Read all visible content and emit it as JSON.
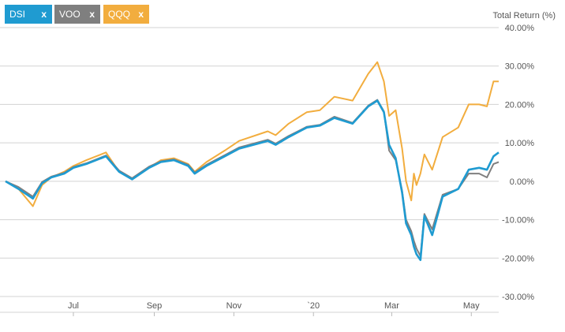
{
  "legend": [
    {
      "label": "DSI",
      "remove": "x",
      "color": "#1f9bd1"
    },
    {
      "label": "VOO",
      "remove": "x",
      "color": "#7f7f7f"
    },
    {
      "label": "QQQ",
      "remove": "x",
      "color": "#f2ad3e"
    }
  ],
  "chart_data": {
    "type": "line",
    "ylabel": "Total Return (%)",
    "ylim": [
      -30,
      40
    ],
    "y_ticks": [
      40,
      30,
      20,
      10,
      0,
      -10,
      -20,
      -30
    ],
    "y_tick_labels": [
      "40.00%",
      "30.00%",
      "20.00%",
      "10.00%",
      "0.00%",
      "-10.00%",
      "-20.00%",
      "-30.00%"
    ],
    "x_tick_labels": [
      "Jul",
      "Sep",
      "Nov",
      "`20",
      "Mar",
      "May"
    ],
    "x_ticks": [
      "2019-07-01",
      "2019-09-01",
      "2019-11-01",
      "2020-01-01",
      "2020-03-01",
      "2020-05-01"
    ],
    "x_range": [
      "2019-05-10",
      "2020-05-22"
    ],
    "grid": true,
    "series": [
      {
        "name": "DSI",
        "color": "#1f9bd1",
        "points": [
          [
            "2019-05-10",
            0
          ],
          [
            "2019-05-20",
            -2
          ],
          [
            "2019-05-31",
            -4.5
          ],
          [
            "2019-06-07",
            -0.5
          ],
          [
            "2019-06-14",
            1
          ],
          [
            "2019-06-24",
            2
          ],
          [
            "2019-07-01",
            3.5
          ],
          [
            "2019-07-11",
            4.5
          ],
          [
            "2019-07-26",
            6.5
          ],
          [
            "2019-08-05",
            2.5
          ],
          [
            "2019-08-15",
            0.5
          ],
          [
            "2019-08-28",
            3.5
          ],
          [
            "2019-09-06",
            5
          ],
          [
            "2019-09-16",
            5.5
          ],
          [
            "2019-09-27",
            4
          ],
          [
            "2019-10-02",
            2
          ],
          [
            "2019-10-11",
            4
          ],
          [
            "2019-10-25",
            6.5
          ],
          [
            "2019-11-05",
            8.5
          ],
          [
            "2019-11-27",
            10.5
          ],
          [
            "2019-12-03",
            9.5
          ],
          [
            "2019-12-13",
            11.5
          ],
          [
            "2019-12-27",
            14
          ],
          [
            "2020-01-06",
            14.5
          ],
          [
            "2020-01-17",
            16.5
          ],
          [
            "2020-01-31",
            15
          ],
          [
            "2020-02-12",
            19.5
          ],
          [
            "2020-02-19",
            21
          ],
          [
            "2020-02-24",
            18
          ],
          [
            "2020-02-28",
            9.5
          ],
          [
            "2020-03-04",
            6
          ],
          [
            "2020-03-09",
            -3
          ],
          [
            "2020-03-12",
            -11
          ],
          [
            "2020-03-16",
            -14
          ],
          [
            "2020-03-18",
            -17
          ],
          [
            "2020-03-20",
            -19
          ],
          [
            "2020-03-23",
            -20.5
          ],
          [
            "2020-03-26",
            -9
          ],
          [
            "2020-04-01",
            -14
          ],
          [
            "2020-04-09",
            -4
          ],
          [
            "2020-04-21",
            -2
          ],
          [
            "2020-04-29",
            3
          ],
          [
            "2020-05-07",
            3.5
          ],
          [
            "2020-05-13",
            3
          ],
          [
            "2020-05-18",
            6.5
          ],
          [
            "2020-05-22",
            7.5
          ]
        ]
      },
      {
        "name": "VOO",
        "color": "#7f7f7f",
        "points": [
          [
            "2019-05-10",
            0
          ],
          [
            "2019-05-20",
            -1.5
          ],
          [
            "2019-05-31",
            -4
          ],
          [
            "2019-06-07",
            -0.2
          ],
          [
            "2019-06-14",
            1.2
          ],
          [
            "2019-06-24",
            2.2
          ],
          [
            "2019-07-01",
            3.7
          ],
          [
            "2019-07-11",
            4.7
          ],
          [
            "2019-07-26",
            6.7
          ],
          [
            "2019-08-05",
            2.8
          ],
          [
            "2019-08-15",
            0.8
          ],
          [
            "2019-08-28",
            3.8
          ],
          [
            "2019-09-06",
            5.2
          ],
          [
            "2019-09-16",
            5.7
          ],
          [
            "2019-09-27",
            4.3
          ],
          [
            "2019-10-02",
            2.3
          ],
          [
            "2019-10-11",
            4.3
          ],
          [
            "2019-10-25",
            6.8
          ],
          [
            "2019-11-05",
            8.8
          ],
          [
            "2019-11-27",
            10.8
          ],
          [
            "2019-12-03",
            9.8
          ],
          [
            "2019-12-13",
            11.8
          ],
          [
            "2019-12-27",
            14.2
          ],
          [
            "2020-01-06",
            14.7
          ],
          [
            "2020-01-17",
            16.8
          ],
          [
            "2020-01-31",
            15.2
          ],
          [
            "2020-02-12",
            19.7
          ],
          [
            "2020-02-19",
            21.2
          ],
          [
            "2020-02-24",
            18.2
          ],
          [
            "2020-02-28",
            8
          ],
          [
            "2020-03-04",
            5.5
          ],
          [
            "2020-03-09",
            -2.5
          ],
          [
            "2020-03-12",
            -10
          ],
          [
            "2020-03-16",
            -13
          ],
          [
            "2020-03-18",
            -15.5
          ],
          [
            "2020-03-20",
            -17.5
          ],
          [
            "2020-03-23",
            -19.5
          ],
          [
            "2020-03-26",
            -8.5
          ],
          [
            "2020-04-01",
            -12.5
          ],
          [
            "2020-04-09",
            -3.5
          ],
          [
            "2020-04-21",
            -2
          ],
          [
            "2020-04-29",
            2
          ],
          [
            "2020-05-07",
            2
          ],
          [
            "2020-05-13",
            1
          ],
          [
            "2020-05-18",
            4.5
          ],
          [
            "2020-05-22",
            5
          ]
        ]
      },
      {
        "name": "QQQ",
        "color": "#f2ad3e",
        "points": [
          [
            "2019-05-10",
            0
          ],
          [
            "2019-05-20",
            -2
          ],
          [
            "2019-05-31",
            -6.5
          ],
          [
            "2019-06-07",
            -1
          ],
          [
            "2019-06-14",
            1
          ],
          [
            "2019-06-24",
            2.5
          ],
          [
            "2019-07-01",
            4
          ],
          [
            "2019-07-11",
            5.5
          ],
          [
            "2019-07-26",
            7.5
          ],
          [
            "2019-08-05",
            2.5
          ],
          [
            "2019-08-15",
            0.5
          ],
          [
            "2019-08-28",
            3.5
          ],
          [
            "2019-09-06",
            5.5
          ],
          [
            "2019-09-16",
            6
          ],
          [
            "2019-09-27",
            4.5
          ],
          [
            "2019-10-02",
            2.5
          ],
          [
            "2019-10-11",
            5
          ],
          [
            "2019-10-25",
            8
          ],
          [
            "2019-11-05",
            10.5
          ],
          [
            "2019-11-27",
            13
          ],
          [
            "2019-12-03",
            12
          ],
          [
            "2019-12-13",
            15
          ],
          [
            "2019-12-27",
            18
          ],
          [
            "2020-01-06",
            18.5
          ],
          [
            "2020-01-17",
            22
          ],
          [
            "2020-01-31",
            21
          ],
          [
            "2020-02-12",
            28
          ],
          [
            "2020-02-19",
            31
          ],
          [
            "2020-02-24",
            26
          ],
          [
            "2020-02-28",
            17
          ],
          [
            "2020-03-04",
            18.5
          ],
          [
            "2020-03-09",
            8.5
          ],
          [
            "2020-03-12",
            0
          ],
          [
            "2020-03-16",
            -5
          ],
          [
            "2020-03-18",
            2
          ],
          [
            "2020-03-20",
            -1
          ],
          [
            "2020-03-23",
            2
          ],
          [
            "2020-03-26",
            7
          ],
          [
            "2020-04-01",
            3
          ],
          [
            "2020-04-09",
            11.5
          ],
          [
            "2020-04-21",
            14
          ],
          [
            "2020-04-29",
            20
          ],
          [
            "2020-05-07",
            20
          ],
          [
            "2020-05-13",
            19.5
          ],
          [
            "2020-05-18",
            26
          ],
          [
            "2020-05-22",
            26
          ]
        ]
      }
    ]
  }
}
